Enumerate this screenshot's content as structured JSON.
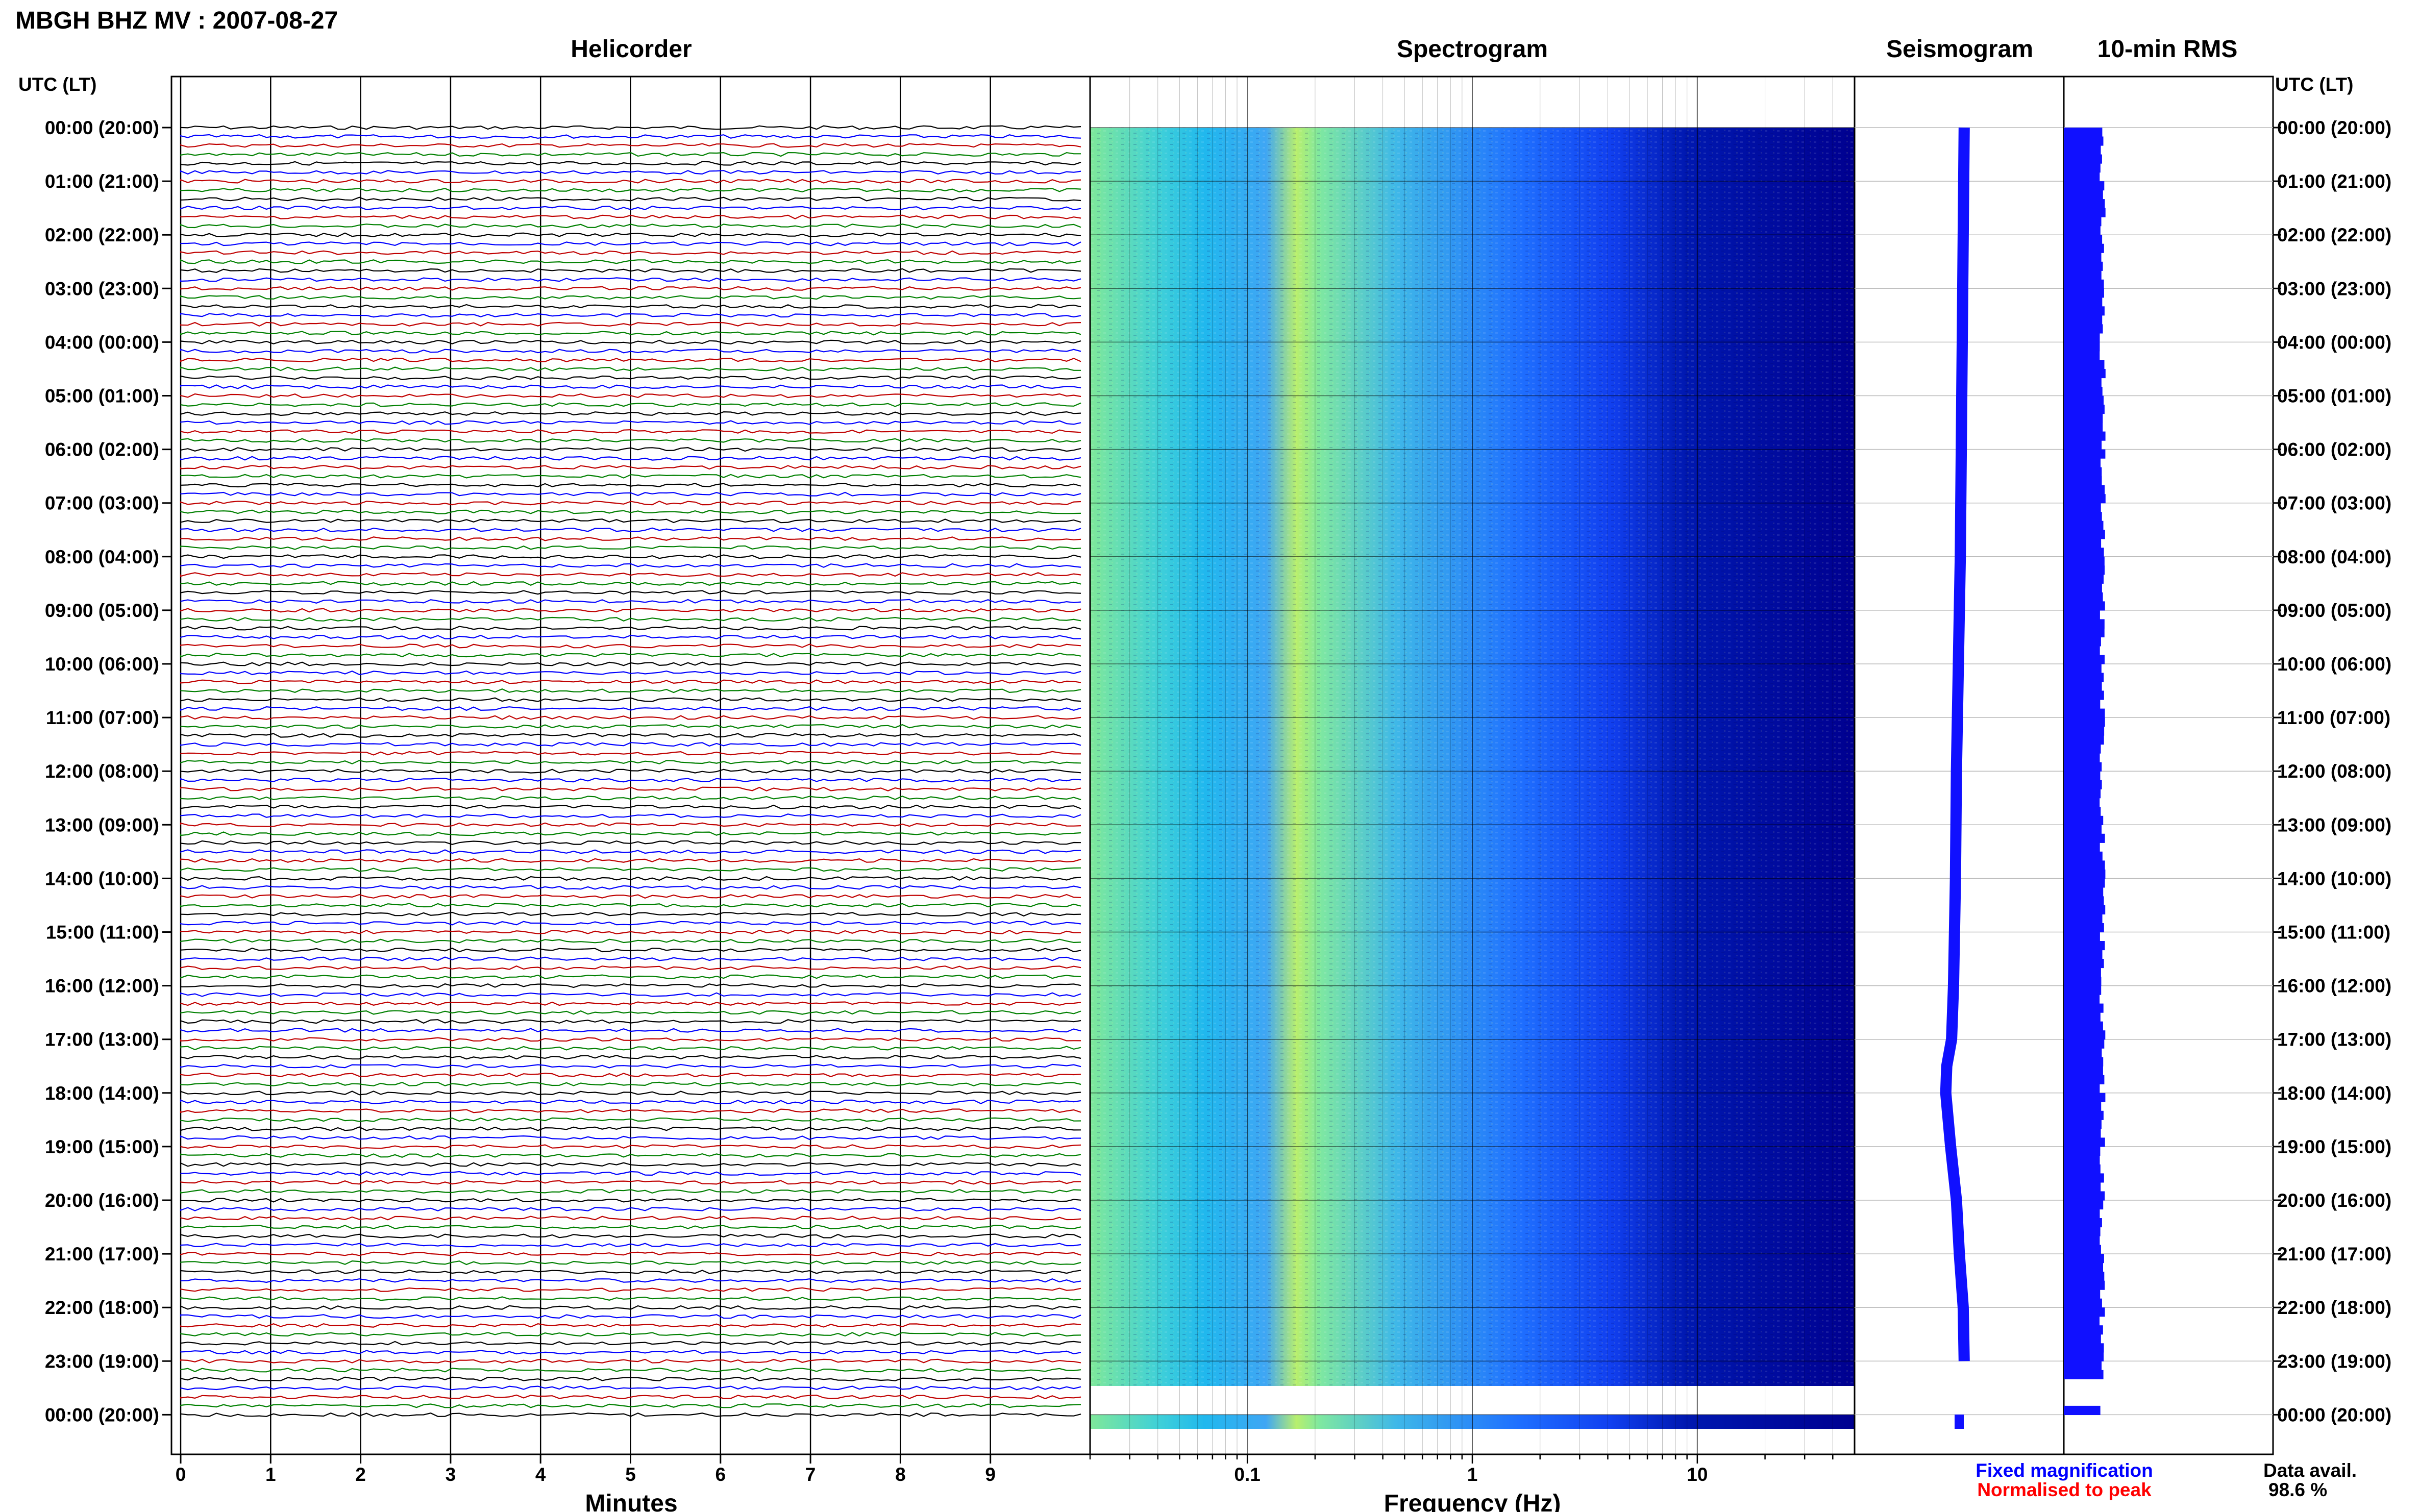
{
  "title": "MBGH BHZ MV : 2007-08-27",
  "panels": {
    "helicorder": "Helicorder",
    "spectrogram": "Spectrogram",
    "seismogram": "Seismogram",
    "rms": "10-min RMS"
  },
  "time_axis_label": "UTC (LT)",
  "time_labels": [
    "00:00 (20:00)",
    "01:00 (21:00)",
    "02:00 (22:00)",
    "03:00 (23:00)",
    "04:00 (00:00)",
    "05:00 (01:00)",
    "06:00 (02:00)",
    "07:00 (03:00)",
    "08:00 (04:00)",
    "09:00 (05:00)",
    "10:00 (06:00)",
    "11:00 (07:00)",
    "12:00 (08:00)",
    "13:00 (09:00)",
    "14:00 (10:00)",
    "15:00 (11:00)",
    "16:00 (12:00)",
    "17:00 (13:00)",
    "18:00 (14:00)",
    "19:00 (15:00)",
    "20:00 (16:00)",
    "21:00 (17:00)",
    "22:00 (18:00)",
    "23:00 (19:00)",
    "00:00 (20:00)"
  ],
  "helicorder_axis": {
    "label": "Minutes",
    "ticks": [
      "0",
      "1",
      "2",
      "3",
      "4",
      "5",
      "6",
      "7",
      "8",
      "9"
    ]
  },
  "spectrogram_axis": {
    "label": "Frequency (Hz)",
    "ticks": [
      "0.1",
      "1",
      "10"
    ]
  },
  "legend": {
    "fixed": {
      "text": "Fixed magnification",
      "color": "#0000ff"
    },
    "normalised": {
      "text": "Normalised to peak",
      "color": "#ff0000"
    }
  },
  "data_avail": {
    "label": "Data avail.",
    "value": "98.6 %"
  },
  "trace_colors": [
    "#000000",
    "#0000ff",
    "#c00000",
    "#008000"
  ],
  "chart_data": [
    {
      "type": "line",
      "title": "Helicorder",
      "xlabel": "Minutes",
      "xlim": [
        0,
        10
      ],
      "ylabel": "UTC (LT)",
      "note_lines": "144 traces of 10 min each, colours cycle black/blue/red/green"
    },
    {
      "type": "heatmap",
      "title": "Spectrogram",
      "xlabel": "Frequency (Hz)",
      "x_scale": "log",
      "xlim": [
        0.02,
        50
      ],
      "data_gap_hours": [
        23.17,
        23.67
      ]
    },
    {
      "type": "line",
      "title": "Seismogram",
      "x_hours": [
        0,
        2,
        4,
        6,
        8,
        10,
        12,
        14,
        16,
        17,
        17.5,
        18,
        19,
        20,
        21,
        22,
        23
      ],
      "offset": [
        0.1,
        0.05,
        0.0,
        -0.05,
        -0.1,
        -0.2,
        -0.3,
        -0.35,
        -0.45,
        -0.55,
        -0.8,
        -0.85,
        -0.6,
        -0.3,
        -0.15,
        0.05,
        0.1
      ],
      "data_gap_hours": [
        23.17,
        23.67
      ]
    },
    {
      "type": "bar",
      "title": "10-min RMS",
      "orientation": "horizontal",
      "data_gap_hours": [
        23.17,
        23.67
      ]
    }
  ]
}
